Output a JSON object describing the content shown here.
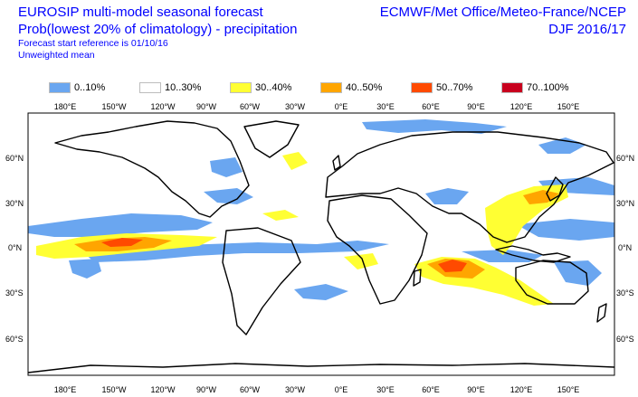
{
  "header": {
    "title_line1": "EUROSIP multi-model seasonal forecast",
    "title_line2": "Prob(lowest 20% of climatology) - precipitation",
    "subtitle_line1": "Forecast start reference is 01/10/16",
    "subtitle_line2": "Unweighted mean",
    "centres": "ECMWF/Met Office/Meteo-France/NCEP",
    "season": "DJF 2016/17"
  },
  "legend": [
    {
      "label": "0..10%",
      "color": "#6aa6f0"
    },
    {
      "label": "10..30%",
      "color": "#ffffff"
    },
    {
      "label": "30..40%",
      "color": "#ffff33"
    },
    {
      "label": "40..50%",
      "color": "#ffa500"
    },
    {
      "label": "50..70%",
      "color": "#ff4a00"
    },
    {
      "label": "70..100%",
      "color": "#c8001e"
    }
  ],
  "map": {
    "lon_labels": [
      "180°E",
      "150°W",
      "120°W",
      "90°W",
      "60°W",
      "30°W",
      "0°E",
      "30°E",
      "60°E",
      "90°E",
      "120°E",
      "150°E"
    ],
    "lat_labels_left": [
      "60°N",
      "30°N",
      "0°N",
      "30°S",
      "60°S"
    ],
    "lat_labels_right": [
      "60°N",
      "30°N",
      "0°N",
      "30°S",
      "60°S"
    ]
  }
}
